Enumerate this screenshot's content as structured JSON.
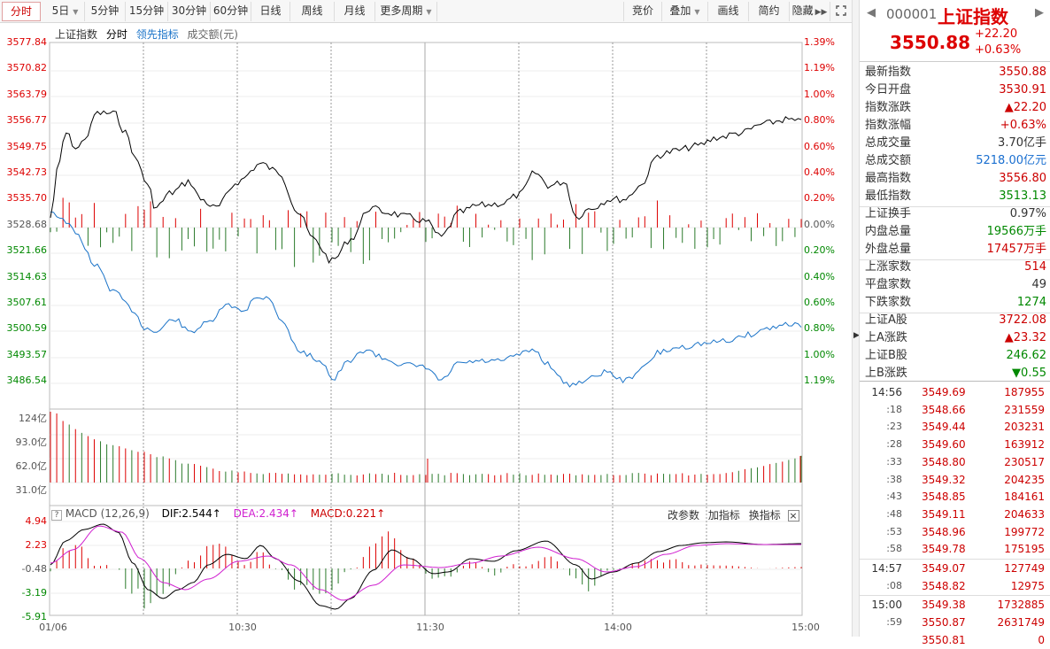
{
  "toolbar": {
    "tabs": [
      "分时",
      "5日",
      "5分钟",
      "15分钟",
      "30分钟",
      "60分钟",
      "日线",
      "周线",
      "月线",
      "更多周期"
    ],
    "right": [
      "竞价",
      "叠加",
      "画线",
      "简约",
      "隐藏"
    ]
  },
  "chart": {
    "legend": {
      "name": "上证指数",
      "mode": "分时",
      "lead": "领先指标",
      "amount": "成交额(元)"
    },
    "price_labels": [
      "3577.84",
      "3570.82",
      "3563.79",
      "3556.77",
      "3549.75",
      "3542.73",
      "3535.70",
      "3528.68",
      "3521.66",
      "3514.63",
      "3507.61",
      "3500.59",
      "3493.57",
      "3486.54"
    ],
    "pct_labels": [
      "1.39%",
      "1.19%",
      "1.00%",
      "0.80%",
      "0.60%",
      "0.40%",
      "0.20%",
      "0.00%",
      "0.20%",
      "0.40%",
      "0.60%",
      "0.80%",
      "1.00%",
      "1.19%"
    ],
    "vol_labels": [
      "124亿",
      "93.0亿",
      "62.0亿",
      "31.0亿"
    ],
    "macd_labels": [
      "4.94",
      "2.23",
      "-0.48",
      "-3.19",
      "-5.91"
    ],
    "time_labels": [
      "01/06",
      "10:30",
      "11:30",
      "14:00",
      "15:00"
    ],
    "macd_legend": {
      "title": "MACD (12,26,9)",
      "dif": "DIF:2.544↑",
      "dea": "DEA:2.434↑",
      "macd": "MACD:0.221↑",
      "btn1": "改参数",
      "btn2": "加指标",
      "btn3": "换指标",
      "close": "×"
    }
  },
  "sidebar": {
    "code": "000001",
    "name": "上证指数",
    "price": "3550.88",
    "change": "+22.20",
    "change_pct": "+0.63%",
    "stats": [
      {
        "label": "最新指数",
        "value": "3550.88",
        "color": "#c00"
      },
      {
        "label": "今日开盘",
        "value": "3530.91",
        "color": "#c00"
      },
      {
        "label": "指数涨跌",
        "value": "▲22.20",
        "color": "#c00"
      },
      {
        "label": "指数涨幅",
        "value": "+0.63%",
        "color": "#c00"
      },
      {
        "label": "总成交量",
        "value": "3.70亿手",
        "color": "#333"
      },
      {
        "label": "总成交额",
        "value": "5218.00亿元",
        "color": "#1a6fd0"
      },
      {
        "label": "最高指数",
        "value": "3556.80",
        "color": "#c00"
      },
      {
        "label": "最低指数",
        "value": "3513.13",
        "color": "#080"
      },
      {
        "label": "上证换手",
        "value": "0.97%",
        "color": "#333"
      },
      {
        "label": "内盘总量",
        "value": "19566万手",
        "color": "#080"
      },
      {
        "label": "外盘总量",
        "value": "17457万手",
        "color": "#c00"
      },
      {
        "label": "上涨家数",
        "value": "514",
        "color": "#c00"
      },
      {
        "label": "平盘家数",
        "value": "49",
        "color": "#333"
      },
      {
        "label": "下跌家数",
        "value": "1274",
        "color": "#080"
      },
      {
        "label": "上证A股",
        "value": "3722.08",
        "color": "#c00"
      },
      {
        "label": "上A涨跌",
        "value": "▲23.32",
        "color": "#c00"
      },
      {
        "label": "上证B股",
        "value": "246.62",
        "color": "#080"
      },
      {
        "label": "上B涨跌",
        "value": "▼0.55",
        "color": "#080"
      }
    ],
    "ticks": [
      {
        "time": "14:56",
        "price": "3549.69",
        "vol": "187955"
      },
      {
        "time": ":18",
        "price": "3548.66",
        "vol": "231559"
      },
      {
        "time": ":23",
        "price": "3549.44",
        "vol": "203231"
      },
      {
        "time": ":28",
        "price": "3549.60",
        "vol": "163912"
      },
      {
        "time": ":33",
        "price": "3548.80",
        "vol": "230517"
      },
      {
        "time": ":38",
        "price": "3549.32",
        "vol": "204235"
      },
      {
        "time": ":43",
        "price": "3548.85",
        "vol": "184161"
      },
      {
        "time": ":48",
        "price": "3549.11",
        "vol": "204633"
      },
      {
        "time": ":53",
        "price": "3548.96",
        "vol": "199772"
      },
      {
        "time": ":58",
        "price": "3549.78",
        "vol": "175195"
      },
      {
        "time": "14:57",
        "price": "3549.07",
        "vol": "127749"
      },
      {
        "time": ":08",
        "price": "3548.82",
        "vol": "12975"
      },
      {
        "time": "15:00",
        "price": "3549.38",
        "vol": "1732885"
      },
      {
        "time": ":59",
        "price": "3550.87",
        "vol": "2631749"
      },
      {
        "time": "",
        "price": "3550.81",
        "vol": "0"
      }
    ]
  }
}
